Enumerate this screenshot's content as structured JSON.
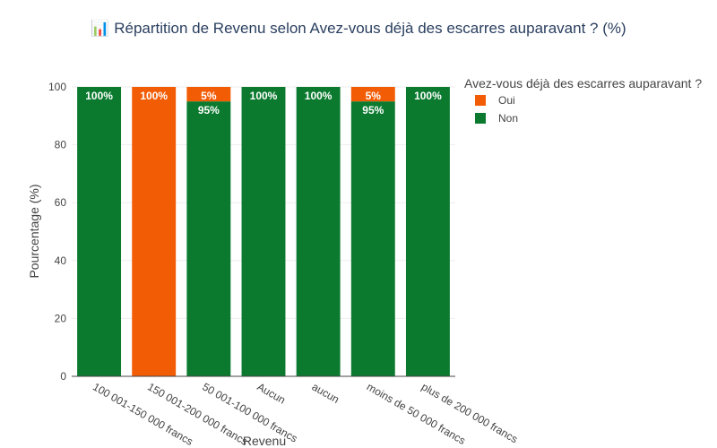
{
  "chart_data": {
    "type": "bar",
    "stacked": true,
    "title": "📊 Répartition de Revenu selon Avez-vous déjà des escarres auparavant ? (%)",
    "xlabel": "Revenu",
    "ylabel": "Pourcentage (%)",
    "ylim": [
      0,
      100
    ],
    "yticks": [
      0,
      20,
      40,
      60,
      80,
      100
    ],
    "grid": true,
    "legend_position": "top-right",
    "legend_title": "Avez-vous déjà des escarres auparavant ?",
    "categories": [
      "100 001-150 000 francs",
      "150 001-200 000 francs",
      "50 001-100 000 francs",
      "Aucun",
      "aucun",
      "moins de 50 000 francs",
      "plus de 200 000 francs"
    ],
    "series": [
      {
        "name": "Non",
        "color": "#0b7a2f",
        "values": [
          100,
          0,
          95,
          100,
          100,
          95,
          100
        ],
        "labels": [
          "100%",
          "",
          "95%",
          "100%",
          "100%",
          "95%",
          "100%"
        ]
      },
      {
        "name": "Oui",
        "color": "#f25c05",
        "values": [
          0,
          100,
          5,
          0,
          0,
          5,
          0
        ],
        "labels": [
          "",
          "100%",
          "5%",
          "",
          "",
          "5%",
          ""
        ]
      }
    ],
    "legend_order": [
      "Oui",
      "Non"
    ]
  }
}
